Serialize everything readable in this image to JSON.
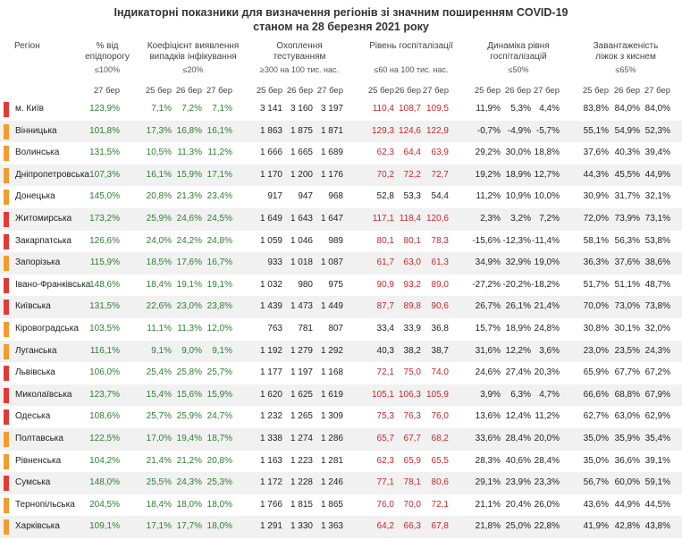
{
  "title_line1": "Індикаторні показники для визначення регіонів зі значним поширенням COVID-19",
  "title_line2": "станом на 28 березня 2021 року",
  "colors": {
    "red": "#e53935",
    "orange": "#f59b2a",
    "good": "#2e7d32",
    "bad": "#c62828"
  },
  "headers": {
    "region": "Регіон",
    "pct_epi": [
      "% від",
      "епідпорогу"
    ],
    "pct_epi_thr": "≤100%",
    "coef": [
      "Коефіцієнт виявлення",
      "випадків інфікування"
    ],
    "coef_thr": "≤20%",
    "testing": [
      "Охоплення тестуванням"
    ],
    "testing_thr": "≥300 на 100 тис. нас.",
    "hosp": [
      "Рівень госпіталізації"
    ],
    "hosp_thr": "≤60 на 100 тис. нас.",
    "dyn": [
      "Динаміка рівня",
      "госпіталізацій"
    ],
    "dyn_thr": "≤50%",
    "beds": [
      "Завантаженість",
      "ліжок з киснем"
    ],
    "beds_thr": "≤65%"
  },
  "dates": {
    "d1": "25 бер",
    "d2": "26 бер",
    "d3": "27 бер"
  },
  "rows": [
    {
      "name": "м. Київ",
      "bar": "red",
      "epi": "123,9%",
      "coef": [
        "7,1%",
        "7,2%",
        "7,1%"
      ],
      "test": [
        "3 141",
        "3 160",
        "3 197"
      ],
      "hosp": [
        "110,4",
        "108,7",
        "109,5"
      ],
      "dyn": [
        "11,9%",
        "5,3%",
        "4,4%"
      ],
      "beds": [
        "83,8%",
        "84,0%",
        "84,0%"
      ]
    },
    {
      "name": "Вінницька",
      "bar": "orange",
      "epi": "101,8%",
      "coef": [
        "17,3%",
        "16,8%",
        "16,1%"
      ],
      "test": [
        "1 863",
        "1 875",
        "1 871"
      ],
      "hosp": [
        "129,3",
        "124,6",
        "122,9"
      ],
      "dyn": [
        "-0,7%",
        "-4,9%",
        "-5,7%"
      ],
      "beds": [
        "55,1%",
        "54,9%",
        "52,3%"
      ]
    },
    {
      "name": "Волинська",
      "bar": "orange",
      "epi": "131,5%",
      "coef": [
        "10,5%",
        "11,3%",
        "11,2%"
      ],
      "test": [
        "1 666",
        "1 665",
        "1 689"
      ],
      "hosp": [
        "62,3",
        "64,4",
        "63,9"
      ],
      "dyn": [
        "29,2%",
        "30,0%",
        "18,8%"
      ],
      "beds": [
        "37,6%",
        "40,3%",
        "39,4%"
      ]
    },
    {
      "name": "Дніпропетровська",
      "bar": "orange",
      "epi": "107,3%",
      "coef": [
        "16,1%",
        "15,9%",
        "17,1%"
      ],
      "test": [
        "1 170",
        "1 200",
        "1 176"
      ],
      "hosp": [
        "70,2",
        "72,2",
        "72,7"
      ],
      "dyn": [
        "19,2%",
        "18,9%",
        "12,7%"
      ],
      "beds": [
        "44,3%",
        "45,5%",
        "44,9%"
      ]
    },
    {
      "name": "Донецька",
      "bar": "orange",
      "epi": "145,0%",
      "coef": [
        "20,8%",
        "21,3%",
        "23,4%"
      ],
      "test": [
        "917",
        "947",
        "968"
      ],
      "hosp": [
        "52,8",
        "53,3",
        "54,4"
      ],
      "dyn": [
        "11,2%",
        "10,9%",
        "10,0%"
      ],
      "beds": [
        "30,9%",
        "31,7%",
        "32,1%"
      ]
    },
    {
      "name": "Житомирська",
      "bar": "red",
      "epi": "173,2%",
      "coef": [
        "25,9%",
        "24,6%",
        "24,5%"
      ],
      "test": [
        "1 649",
        "1 643",
        "1 647"
      ],
      "hosp": [
        "117,1",
        "118,4",
        "120,6"
      ],
      "dyn": [
        "2,3%",
        "3,2%",
        "7,2%"
      ],
      "beds": [
        "72,0%",
        "73,9%",
        "73,1%"
      ]
    },
    {
      "name": "Закарпатська",
      "bar": "red",
      "epi": "126,6%",
      "coef": [
        "24,0%",
        "24,2%",
        "24,8%"
      ],
      "test": [
        "1 059",
        "1 046",
        "989"
      ],
      "hosp": [
        "80,1",
        "80,1",
        "78,3"
      ],
      "dyn": [
        "-15,6%",
        "-12,3%",
        "-11,4%"
      ],
      "beds": [
        "58,1%",
        "56,3%",
        "53,8%"
      ]
    },
    {
      "name": "Запорізька",
      "bar": "orange",
      "epi": "115,9%",
      "coef": [
        "18,5%",
        "17,6%",
        "16,7%"
      ],
      "test": [
        "933",
        "1 018",
        "1 087"
      ],
      "hosp": [
        "61,7",
        "63,0",
        "61,3"
      ],
      "dyn": [
        "34,9%",
        "32,9%",
        "19,0%"
      ],
      "beds": [
        "36,3%",
        "37,6%",
        "38,6%"
      ]
    },
    {
      "name": "Івано-Франківська",
      "bar": "red",
      "epi": "148,6%",
      "coef": [
        "18,4%",
        "19,1%",
        "19,1%"
      ],
      "test": [
        "1 032",
        "980",
        "975"
      ],
      "hosp": [
        "90,9",
        "93,2",
        "89,0"
      ],
      "dyn": [
        "-27,2%",
        "-20,2%",
        "-18,2%"
      ],
      "beds": [
        "51,7%",
        "51,1%",
        "48,7%"
      ]
    },
    {
      "name": "Київська",
      "bar": "red",
      "epi": "131,5%",
      "coef": [
        "22,6%",
        "23,0%",
        "23,8%"
      ],
      "test": [
        "1 439",
        "1 473",
        "1 449"
      ],
      "hosp": [
        "87,7",
        "89,8",
        "90,6"
      ],
      "dyn": [
        "26,7%",
        "26,1%",
        "21,4%"
      ],
      "beds": [
        "70,0%",
        "73,0%",
        "73,8%"
      ]
    },
    {
      "name": "Кіровоградська",
      "bar": "orange",
      "epi": "103,5%",
      "coef": [
        "11,1%",
        "11,3%",
        "12,0%"
      ],
      "test": [
        "763",
        "781",
        "807"
      ],
      "hosp": [
        "33,4",
        "33,9",
        "36,8"
      ],
      "dyn": [
        "15,7%",
        "18,9%",
        "24,8%"
      ],
      "beds": [
        "30,8%",
        "30,1%",
        "32,0%"
      ]
    },
    {
      "name": "Луганська",
      "bar": "orange",
      "epi": "116,1%",
      "coef": [
        "9,1%",
        "9,0%",
        "9,1%"
      ],
      "test": [
        "1 192",
        "1 279",
        "1 292"
      ],
      "hosp": [
        "40,3",
        "38,2",
        "38,7"
      ],
      "dyn": [
        "31,6%",
        "12,2%",
        "3,6%"
      ],
      "beds": [
        "23,0%",
        "23,5%",
        "24,3%"
      ]
    },
    {
      "name": "Львівська",
      "bar": "red",
      "epi": "106,0%",
      "coef": [
        "25,4%",
        "25,8%",
        "25,7%"
      ],
      "test": [
        "1 177",
        "1 197",
        "1 168"
      ],
      "hosp": [
        "72,1",
        "75,0",
        "74,0"
      ],
      "dyn": [
        "24,6%",
        "27,4%",
        "20,3%"
      ],
      "beds": [
        "65,9%",
        "67,7%",
        "67,2%"
      ]
    },
    {
      "name": "Миколаївська",
      "bar": "red",
      "epi": "123,7%",
      "coef": [
        "15,4%",
        "15,6%",
        "15,9%"
      ],
      "test": [
        "1 620",
        "1 625",
        "1 619"
      ],
      "hosp": [
        "105,1",
        "106,3",
        "105,9"
      ],
      "dyn": [
        "3,9%",
        "6,3%",
        "4,7%"
      ],
      "beds": [
        "66,6%",
        "68,8%",
        "67,9%"
      ]
    },
    {
      "name": "Одеська",
      "bar": "red",
      "epi": "108,6%",
      "coef": [
        "25,7%",
        "25,9%",
        "24,7%"
      ],
      "test": [
        "1 232",
        "1 265",
        "1 309"
      ],
      "hosp": [
        "75,3",
        "76,3",
        "76,0"
      ],
      "dyn": [
        "13,6%",
        "12,4%",
        "11,2%"
      ],
      "beds": [
        "62,7%",
        "63,0%",
        "62,9%"
      ]
    },
    {
      "name": "Полтавська",
      "bar": "orange",
      "epi": "122,5%",
      "coef": [
        "17,0%",
        "19,4%",
        "18,7%"
      ],
      "test": [
        "1 338",
        "1 274",
        "1 286"
      ],
      "hosp": [
        "65,7",
        "67,7",
        "68,2"
      ],
      "dyn": [
        "33,6%",
        "28,4%",
        "20,0%"
      ],
      "beds": [
        "35,0%",
        "35,9%",
        "35,4%"
      ]
    },
    {
      "name": "Рівненська",
      "bar": "orange",
      "epi": "104,2%",
      "coef": [
        "21,4%",
        "21,2%",
        "20,8%"
      ],
      "test": [
        "1 163",
        "1 223",
        "1 281"
      ],
      "hosp": [
        "62,3",
        "65,9",
        "65,5"
      ],
      "dyn": [
        "28,3%",
        "40,6%",
        "28,4%"
      ],
      "beds": [
        "35,0%",
        "36,6%",
        "39,1%"
      ]
    },
    {
      "name": "Сумська",
      "bar": "red",
      "epi": "148,0%",
      "coef": [
        "25,5%",
        "24,3%",
        "25,3%"
      ],
      "test": [
        "1 172",
        "1 228",
        "1 246"
      ],
      "hosp": [
        "77,1",
        "78,1",
        "80,6"
      ],
      "dyn": [
        "29,1%",
        "23,9%",
        "23,3%"
      ],
      "beds": [
        "56,7%",
        "60,0%",
        "59,1%"
      ]
    },
    {
      "name": "Тернопільська",
      "bar": "orange",
      "epi": "204,5%",
      "coef": [
        "18,4%",
        "18,0%",
        "18,0%"
      ],
      "test": [
        "1 766",
        "1 815",
        "1 865"
      ],
      "hosp": [
        "76,0",
        "70,0",
        "72,1"
      ],
      "dyn": [
        "21,1%",
        "20,4%",
        "26,0%"
      ],
      "beds": [
        "43,6%",
        "44,9%",
        "44,5%"
      ]
    },
    {
      "name": "Харківська",
      "bar": "orange",
      "epi": "109,1%",
      "coef": [
        "17,1%",
        "17,7%",
        "18,0%"
      ],
      "test": [
        "1 291",
        "1 330",
        "1 363"
      ],
      "hosp": [
        "64,2",
        "66,3",
        "67,8"
      ],
      "dyn": [
        "21,8%",
        "25,0%",
        "22,8%"
      ],
      "beds": [
        "41,9%",
        "42,8%",
        "43,8%"
      ]
    }
  ]
}
